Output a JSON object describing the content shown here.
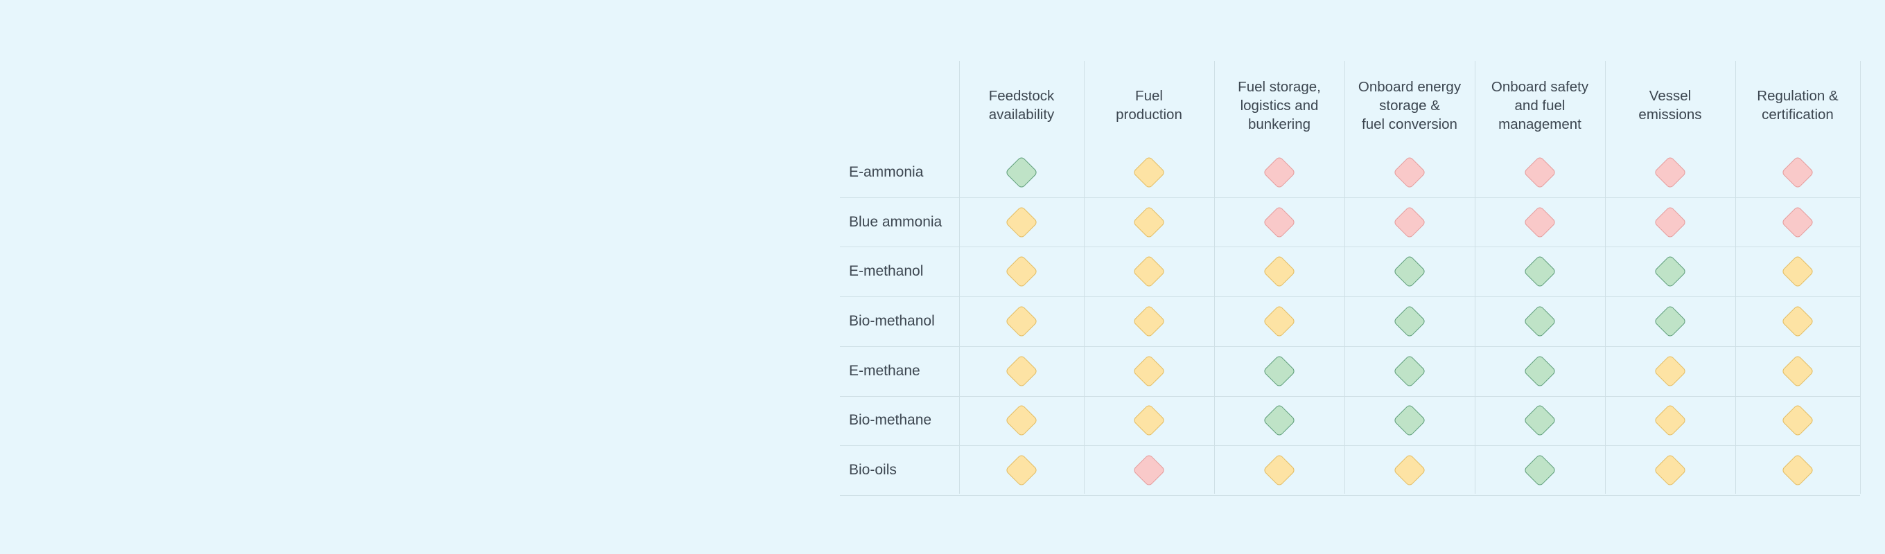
{
  "chart_data": {
    "type": "table",
    "columns": [
      "Feedstock\navailability",
      "Fuel\nproduction",
      "Fuel storage,\nlogistics and\nbunkering",
      "Onboard energy\nstorage &\nfuel conversion",
      "Onboard safety\nand fuel\nmanagement",
      "Vessel\nemissions",
      "Regulation &\ncertification"
    ],
    "rows": [
      "E-ammonia",
      "Blue ammonia",
      "E-methanol",
      "Bio-methanol",
      "E-methane",
      "Bio-methane",
      "Bio-oils"
    ],
    "values": [
      [
        "green",
        "yellow",
        "red",
        "red",
        "red",
        "red",
        "red"
      ],
      [
        "yellow",
        "yellow",
        "red",
        "red",
        "red",
        "red",
        "red"
      ],
      [
        "yellow",
        "yellow",
        "yellow",
        "green",
        "green",
        "green",
        "yellow"
      ],
      [
        "yellow",
        "yellow",
        "yellow",
        "green",
        "green",
        "green",
        "yellow"
      ],
      [
        "yellow",
        "yellow",
        "green",
        "green",
        "green",
        "yellow",
        "yellow"
      ],
      [
        "yellow",
        "yellow",
        "green",
        "green",
        "green",
        "yellow",
        "yellow"
      ],
      [
        "yellow",
        "red",
        "yellow",
        "yellow",
        "green",
        "yellow",
        "yellow"
      ]
    ],
    "level_colors": {
      "green": {
        "fill": "#bfe3c7",
        "stroke": "#5e9e7a"
      },
      "yellow": {
        "fill": "#fde3a4",
        "stroke": "#e3bd63"
      },
      "red": {
        "fill": "#f9c9c9",
        "stroke": "#e59c9c"
      }
    },
    "background": "#e7f6fc",
    "gridline_color": "#cfe0e6"
  }
}
